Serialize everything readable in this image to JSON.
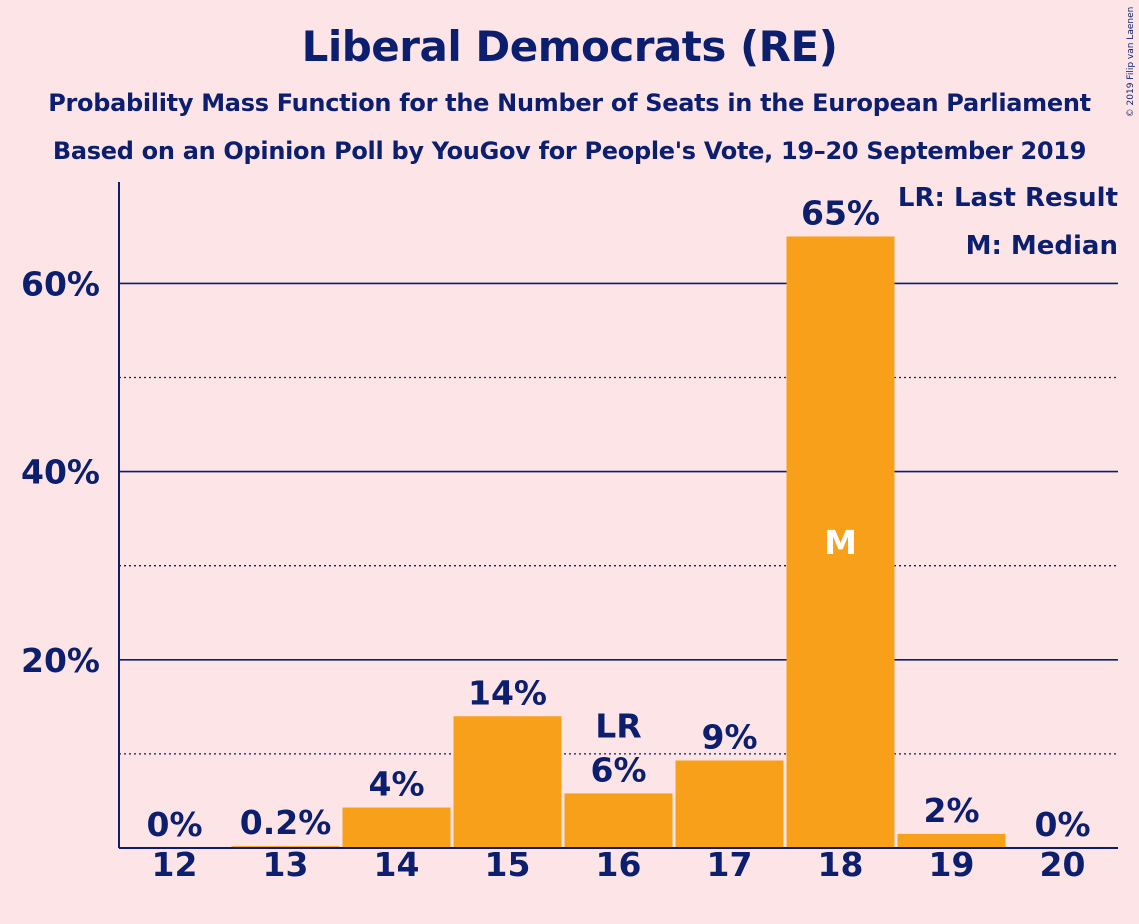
{
  "title": "Liberal Democrats (RE)",
  "subtitle_line1": "Probability Mass Function for the Number of Seats in the European Parliament",
  "subtitle_line2": "Based on an Opinion Poll by YouGov for People's Vote, 19–20 September 2019",
  "copyright": "© 2019 Filip van Laenen",
  "legend": {
    "last_result": "LR: Last Result",
    "median": "M: Median"
  },
  "colors": {
    "background": "#fde4e7",
    "bar": "#f9a01b",
    "text": "#0b1f6e",
    "grid": "#0b1f6e"
  },
  "chart_data": {
    "type": "bar",
    "categories": [
      "12",
      "13",
      "14",
      "15",
      "16",
      "17",
      "18",
      "19",
      "20"
    ],
    "values": [
      0,
      0.2,
      4.3,
      14,
      5.8,
      9.3,
      65,
      1.5,
      0
    ],
    "data_labels": [
      "0%",
      "0.2%",
      "4%",
      "14%",
      "6%",
      "9%",
      "65%",
      "2%",
      "0%"
    ],
    "ylim": [
      0,
      70
    ],
    "yticks": [
      20,
      40,
      60
    ],
    "ytick_labels": [
      "20%",
      "40%",
      "60%"
    ],
    "minor_gridlines": [
      10,
      30,
      50
    ],
    "last_result": {
      "category": "16",
      "label": "LR"
    },
    "median": {
      "category": "18",
      "label": "M"
    },
    "legend_position": "top-right"
  }
}
